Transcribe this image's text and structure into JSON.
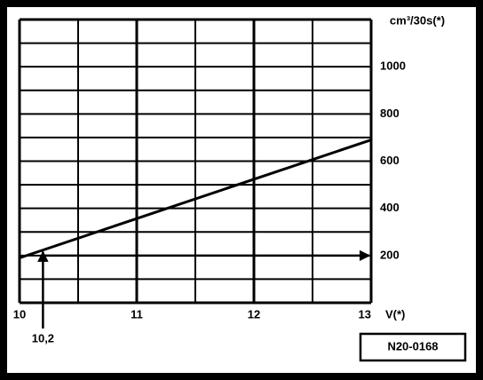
{
  "chart_data": {
    "type": "line",
    "x": [
      10,
      13
    ],
    "values": [
      190,
      690
    ],
    "color": "#000000",
    "xlim": [
      10,
      13
    ],
    "xticks": [
      10,
      11,
      12,
      13
    ],
    "x_label": "V(*)",
    "ylim": [
      0,
      1200
    ],
    "yticks": [
      200,
      400,
      600,
      800,
      1000
    ],
    "y_label": "cm³/30s(*)",
    "grid": true,
    "annotation": {
      "x": {
        "value": 10.2,
        "label": "10,2"
      },
      "y": 200
    },
    "figure_code": "N20-0168"
  }
}
